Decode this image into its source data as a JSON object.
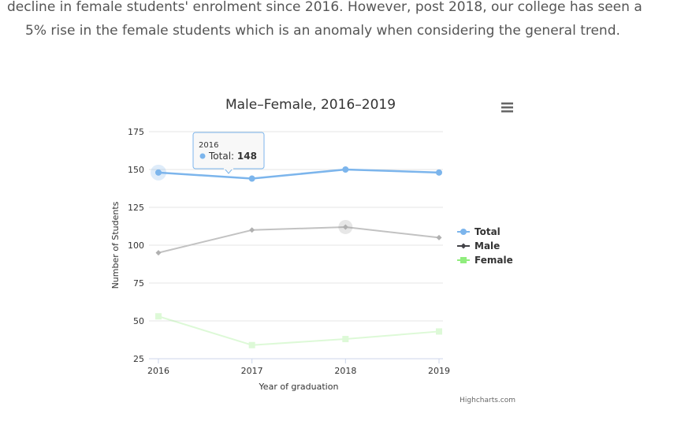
{
  "intro": {
    "line1": "decline in female students' enrolment since 2016. However, post 2018, our college has seen a",
    "line2": "5% rise in the female students which is an anomaly when considering the general trend."
  },
  "menu_icon": "hamburger-menu-icon",
  "credit": "Highcharts.com",
  "tooltip": {
    "header": "2016",
    "series": "Total",
    "value": "148"
  },
  "chart_data": {
    "type": "line",
    "title": "Male–Female, 2016–2019",
    "xlabel": "Year of graduation",
    "ylabel": "Number of Students",
    "categories": [
      "2016",
      "2017",
      "2018",
      "2019"
    ],
    "yticks": [
      25,
      50,
      75,
      100,
      125,
      150,
      175
    ],
    "ylim": [
      25,
      175
    ],
    "grid": true,
    "legend_position": "right",
    "series": [
      {
        "name": "Total",
        "values": [
          148,
          144,
          150,
          148
        ],
        "color": "#7cb5ec",
        "marker": "circle"
      },
      {
        "name": "Male",
        "values": [
          95,
          110,
          112,
          105
        ],
        "color": "#434348",
        "marker": "diamond"
      },
      {
        "name": "Female",
        "values": [
          53,
          34,
          38,
          43
        ],
        "color": "#90ed7d",
        "marker": "square"
      }
    ]
  }
}
